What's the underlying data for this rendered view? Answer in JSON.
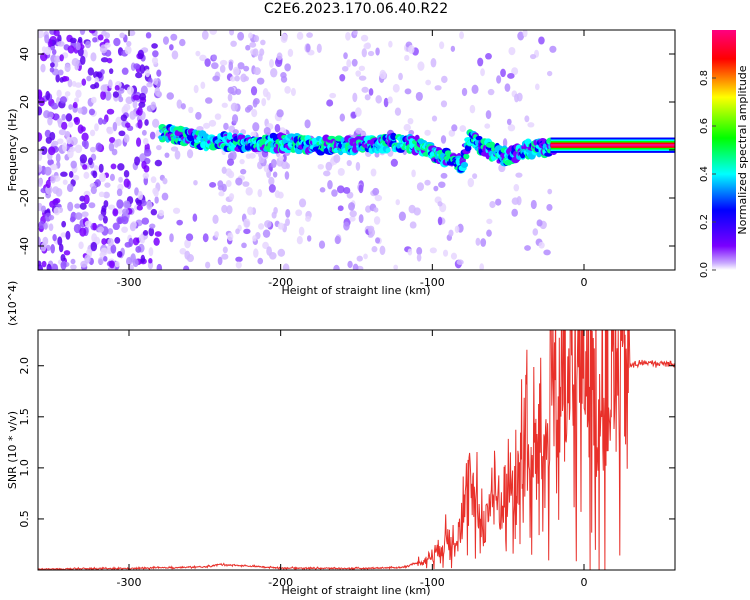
{
  "title": "C2E6.2023.170.06.40.R22",
  "chart_data": [
    {
      "type": "heatmap",
      "xlabel": "Height of straight line (km)",
      "ylabel": "Frequency (Hz)",
      "xlim": [
        -360,
        60
      ],
      "ylim": [
        -50,
        50
      ],
      "xticks": [
        -300,
        -200,
        -100,
        0
      ],
      "xtick_labels": [
        "-300",
        "-200",
        "-100",
        "0"
      ],
      "yticks": [
        -40,
        -20,
        0,
        20,
        40
      ],
      "ytick_labels": [
        "-40",
        "-20",
        "0",
        "20",
        "40"
      ],
      "grid": false,
      "colorbar": {
        "label": "Normalized spectral amplitude",
        "range": [
          0,
          1
        ],
        "ticks": [
          0.0,
          0.2,
          0.4,
          0.6,
          0.8
        ],
        "tick_labels": [
          "0.0",
          "0.2",
          "0.4",
          "0.6",
          "0.8"
        ],
        "colors": [
          "#ffffff",
          "#7a00ff",
          "#0000ff",
          "#00ffff",
          "#00ff00",
          "#ffff00",
          "#ff0000",
          "#ff0080"
        ]
      },
      "ridge": {
        "x": [
          -275,
          -250,
          -225,
          -200,
          -175,
          -150,
          -125,
          -110,
          -95,
          -85,
          -80,
          -75,
          -70,
          -60,
          -50,
          -40,
          -30,
          -20,
          -10,
          0,
          10,
          20,
          40,
          60
        ],
        "y": [
          7,
          4,
          3,
          3,
          2,
          2,
          3,
          2,
          -2,
          -5,
          -6,
          5,
          3,
          -1,
          -3,
          0,
          1,
          1,
          2,
          2,
          2,
          2,
          2,
          2
        ]
      }
    },
    {
      "type": "line",
      "xlabel": "Height of straight line (km)",
      "ylabel": "SNR (10 * v/v)",
      "y_multiplier": "(x10^4)",
      "xlim": [
        -360,
        60
      ],
      "ylim": [
        0,
        23500
      ],
      "xticks": [
        -300,
        -200,
        -100,
        0
      ],
      "xtick_labels": [
        "-300",
        "-200",
        "-100",
        "0"
      ],
      "yticks": [
        5000,
        10000,
        15000,
        20000
      ],
      "ytick_labels": [
        "0.5",
        "1.0",
        "1.5",
        "2.0"
      ],
      "grid": false,
      "series": [
        {
          "color": "#e8302a",
          "x": [
            -360,
            -300,
            -250,
            -240,
            -200,
            -150,
            -120,
            -105,
            -95,
            -85,
            -80,
            -75,
            -70,
            -65,
            -60,
            -55,
            -50,
            -45,
            -40,
            -35,
            -30,
            -25,
            -20,
            -18,
            -15,
            -10,
            -5,
            0,
            5,
            10,
            15,
            20,
            25,
            30,
            40,
            50,
            60
          ],
          "y": [
            80,
            150,
            300,
            550,
            200,
            150,
            250,
            900,
            2200,
            3500,
            5000,
            7500,
            5500,
            4500,
            8000,
            6000,
            9000,
            7000,
            12500,
            9000,
            13000,
            11000,
            21500,
            14000,
            18000,
            16000,
            17000,
            22000,
            17000,
            14500,
            17500,
            18000,
            19500,
            20000,
            20300,
            20200,
            20200
          ]
        }
      ]
    }
  ]
}
